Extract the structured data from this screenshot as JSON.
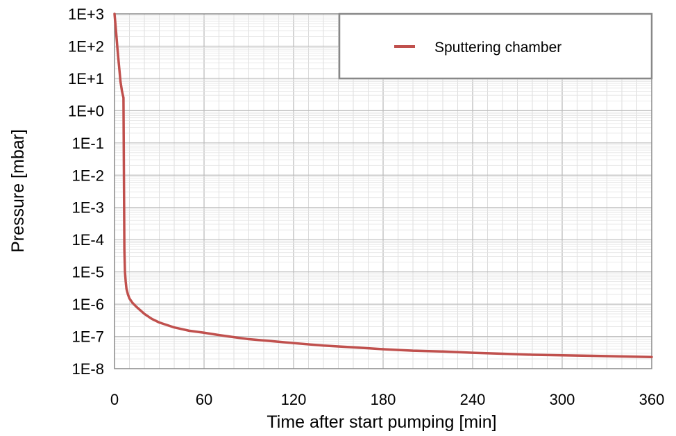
{
  "chart_data": {
    "type": "line",
    "title": "",
    "xlabel": "Time after start pumping [min]",
    "ylabel": "Pressure [mbar]",
    "xlim": [
      0,
      360
    ],
    "ylim_exponent": [
      -8,
      3
    ],
    "yscale": "log",
    "x_ticks": [
      0,
      60,
      120,
      180,
      240,
      300,
      360
    ],
    "x_tick_labels": [
      "0",
      "60",
      "120",
      "180",
      "240",
      "300",
      "360"
    ],
    "y_ticks_exponent": [
      3,
      2,
      1,
      0,
      -1,
      -2,
      -3,
      -4,
      -5,
      -6,
      -7,
      -8
    ],
    "y_tick_labels": [
      "1E+3",
      "1E+2",
      "1E+1",
      "1E+0",
      "1E-1",
      "1E-2",
      "1E-3",
      "1E-4",
      "1E-5",
      "1E-6",
      "1E-7",
      "1E-8"
    ],
    "grid": true,
    "legend_position": "top-right",
    "series": [
      {
        "name": "Sputtering chamber",
        "color": "#c0504d",
        "x": [
          0,
          1,
          2,
          3,
          4,
          5,
          6,
          6.3,
          6.6,
          7,
          7.5,
          8,
          9,
          10,
          12,
          15,
          20,
          25,
          30,
          40,
          50,
          60,
          70,
          80,
          90,
          100,
          120,
          140,
          160,
          180,
          200,
          220,
          240,
          260,
          280,
          300,
          320,
          340,
          360
        ],
        "y": [
          1000,
          300,
          80,
          25,
          8,
          4,
          2.5,
          0.01,
          5e-05,
          1e-05,
          5e-06,
          3e-06,
          2e-06,
          1.5e-06,
          1.1e-06,
          8e-07,
          5e-07,
          3.5e-07,
          2.7e-07,
          1.9e-07,
          1.5e-07,
          1.3e-07,
          1.1e-07,
          9.5e-08,
          8.2e-08,
          7.5e-08,
          6.2e-08,
          5.2e-08,
          4.6e-08,
          4e-08,
          3.6e-08,
          3.4e-08,
          3.1e-08,
          2.9e-08,
          2.7e-08,
          2.6e-08,
          2.5e-08,
          2.4e-08,
          2.3e-08
        ]
      }
    ]
  }
}
